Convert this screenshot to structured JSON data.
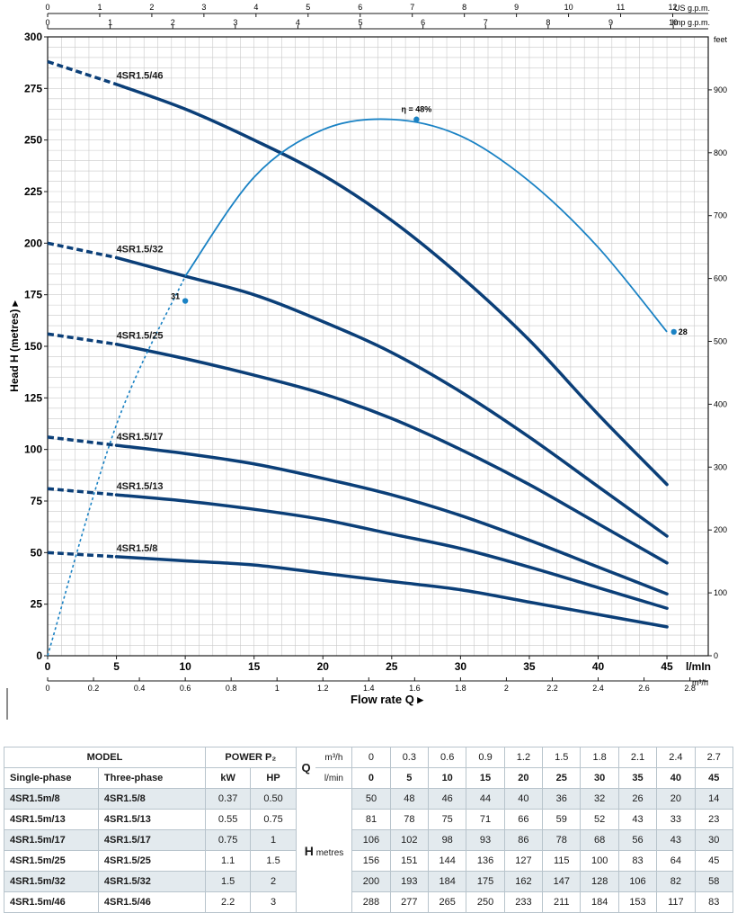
{
  "chart_data": {
    "type": "line",
    "xlabel": "Flow rate Q",
    "ylabel": "Head H (metres)",
    "x_unit": "l/mIn",
    "xlim": [
      0,
      48
    ],
    "ylim": [
      0,
      300
    ],
    "x_ticks": [
      0,
      5,
      10,
      15,
      20,
      25,
      30,
      35,
      40,
      45
    ],
    "y_ticks": [
      0,
      25,
      50,
      75,
      100,
      125,
      150,
      175,
      200,
      225,
      250,
      275,
      300
    ],
    "top_axis_1": {
      "label": "US g.p.m.",
      "ticks": [
        0,
        1,
        2,
        3,
        4,
        5,
        6,
        7,
        8,
        9,
        10,
        11,
        12
      ],
      "x_per_unit": 3.785
    },
    "top_axis_2": {
      "label": "Imp g.p.m.",
      "ticks": [
        0,
        1,
        2,
        3,
        4,
        5,
        6,
        7,
        8,
        9,
        10
      ],
      "x_per_unit": 4.546
    },
    "bottom_axis_2": {
      "label": "m³/h",
      "ticks": [
        "0",
        "0.2",
        "0.4",
        "0.6",
        "0.8",
        "1",
        "1.2",
        "1.4",
        "1.6",
        "1.8",
        "2",
        "2.2",
        "2.4",
        "2.6",
        "2.8"
      ],
      "x_per_unit": 16.667
    },
    "right_axis": {
      "label": "feet",
      "ticks": [
        0,
        100,
        200,
        300,
        400,
        500,
        600,
        700,
        800,
        900
      ],
      "m_per_unit": 0.3048
    },
    "grid": true,
    "series": [
      {
        "name": "4SR1.5/46",
        "x": [
          0,
          5,
          10,
          15,
          20,
          25,
          30,
          35,
          40,
          45
        ],
        "y": [
          288,
          277,
          265,
          250,
          233,
          211,
          184,
          153,
          117,
          83
        ]
      },
      {
        "name": "4SR1.5/32",
        "x": [
          0,
          5,
          10,
          15,
          20,
          25,
          30,
          35,
          40,
          45
        ],
        "y": [
          200,
          193,
          184,
          175,
          162,
          147,
          128,
          106,
          82,
          58
        ]
      },
      {
        "name": "4SR1.5/25",
        "x": [
          0,
          5,
          10,
          15,
          20,
          25,
          30,
          35,
          40,
          45
        ],
        "y": [
          156,
          151,
          144,
          136,
          127,
          115,
          100,
          83,
          64,
          45
        ]
      },
      {
        "name": "4SR1.5/17",
        "x": [
          0,
          5,
          10,
          15,
          20,
          25,
          30,
          35,
          40,
          45
        ],
        "y": [
          106,
          102,
          98,
          93,
          86,
          78,
          68,
          56,
          43,
          30
        ]
      },
      {
        "name": "4SR1.5/13",
        "x": [
          0,
          5,
          10,
          15,
          20,
          25,
          30,
          35,
          40,
          45
        ],
        "y": [
          81,
          78,
          75,
          71,
          66,
          59,
          52,
          43,
          33,
          23
        ]
      },
      {
        "name": "4SR1.5/8",
        "x": [
          0,
          5,
          10,
          15,
          20,
          25,
          30,
          35,
          40,
          45
        ],
        "y": [
          50,
          48,
          46,
          44,
          40,
          36,
          32,
          26,
          20,
          14
        ]
      }
    ],
    "efficiency_curve": {
      "x": [
        0,
        5,
        10,
        15,
        20,
        25,
        30,
        35,
        40,
        45
      ],
      "y": [
        0,
        112,
        184,
        232,
        255,
        260,
        252,
        230,
        198,
        157
      ],
      "annotations": [
        {
          "text": "η = 48%",
          "x": 26.8,
          "y": 260
        },
        {
          "text": "31",
          "x": 10,
          "y": 172
        },
        {
          "text": "28",
          "x": 45.5,
          "y": 157
        }
      ]
    }
  },
  "table": {
    "model_header": "MODEL",
    "single_phase_header": "Single-phase",
    "three_phase_header": "Three-phase",
    "power_header": "POWER P₂",
    "kw_header": "kW",
    "hp_header": "HP",
    "q_symbol": "Q",
    "q_unit_m3h": "m³/h",
    "q_unit_lmin": "l/min",
    "h_symbol": "H",
    "h_unit": "metres",
    "q_m3h": [
      "0",
      "0.3",
      "0.6",
      "0.9",
      "1.2",
      "1.5",
      "1.8",
      "2.1",
      "2.4",
      "2.7"
    ],
    "q_lmin": [
      "0",
      "5",
      "10",
      "15",
      "20",
      "25",
      "30",
      "35",
      "40",
      "45"
    ],
    "rows": [
      {
        "single": "4SR1.5m/8",
        "three": "4SR1.5/8",
        "kw": "0.37",
        "hp": "0.50",
        "h": [
          "50",
          "48",
          "46",
          "44",
          "40",
          "36",
          "32",
          "26",
          "20",
          "14"
        ]
      },
      {
        "single": "4SR1.5m/13",
        "three": "4SR1.5/13",
        "kw": "0.55",
        "hp": "0.75",
        "h": [
          "81",
          "78",
          "75",
          "71",
          "66",
          "59",
          "52",
          "43",
          "33",
          "23"
        ]
      },
      {
        "single": "4SR1.5m/17",
        "three": "4SR1.5/17",
        "kw": "0.75",
        "hp": "1",
        "h": [
          "106",
          "102",
          "98",
          "93",
          "86",
          "78",
          "68",
          "56",
          "43",
          "30"
        ]
      },
      {
        "single": "4SR1.5m/25",
        "three": "4SR1.5/25",
        "kw": "1.1",
        "hp": "1.5",
        "h": [
          "156",
          "151",
          "144",
          "136",
          "127",
          "115",
          "100",
          "83",
          "64",
          "45"
        ]
      },
      {
        "single": "4SR1.5m/32",
        "three": "4SR1.5/32",
        "kw": "1.5",
        "hp": "2",
        "h": [
          "200",
          "193",
          "184",
          "175",
          "162",
          "147",
          "128",
          "106",
          "82",
          "58"
        ]
      },
      {
        "single": "4SR1.5m/46",
        "three": "4SR1.5/46",
        "kw": "2.2",
        "hp": "3",
        "h": [
          "288",
          "277",
          "265",
          "250",
          "233",
          "211",
          "184",
          "153",
          "117",
          "83"
        ]
      }
    ]
  },
  "colors": {
    "curve": "#0b3f78",
    "efficiency": "#1a82c4",
    "grid": "#c9c9c9",
    "row_alt": "#e3eaee"
  }
}
